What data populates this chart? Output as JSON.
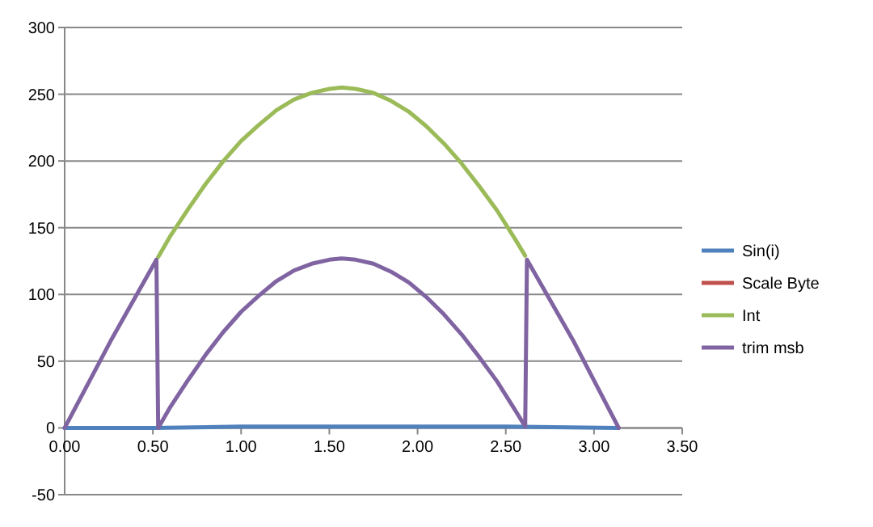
{
  "chart_data": {
    "type": "line",
    "xlim": [
      0,
      3.5
    ],
    "xticks": [
      {
        "value": 0,
        "label": "0.00"
      },
      {
        "value": 0.5,
        "label": "0.50"
      },
      {
        "value": 1,
        "label": "1.00"
      },
      {
        "value": 1.5,
        "label": "1.50"
      },
      {
        "value": 2,
        "label": "2.00"
      },
      {
        "value": 2.5,
        "label": "2.50"
      },
      {
        "value": 3,
        "label": "3.00"
      },
      {
        "value": 3.5,
        "label": "3.50"
      }
    ],
    "ylim": [
      -50,
      300
    ],
    "yticks": [
      -50,
      0,
      50,
      100,
      150,
      200,
      250,
      300
    ],
    "grid": "y",
    "legend": "right",
    "marker": "none",
    "line_style": "solid",
    "series": [
      {
        "name": "Sin(i)",
        "color": "#4f81bd",
        "x": [
          0,
          0.5,
          1,
          1.57,
          2,
          2.5,
          3.14
        ],
        "values": [
          0,
          0,
          1,
          1,
          1,
          1,
          0
        ]
      },
      {
        "name": "Scale Byte",
        "color": "#c0504d"
      },
      {
        "name": "Int",
        "color": "#9bbb59",
        "x": [
          0.53,
          0.6,
          0.7,
          0.8,
          0.9,
          1.0,
          1.1,
          1.2,
          1.3,
          1.4,
          1.5,
          1.57,
          1.65,
          1.75,
          1.85,
          1.95,
          2.05,
          2.15,
          2.25,
          2.35,
          2.45,
          2.55,
          2.61
        ],
        "values": [
          128,
          144,
          164,
          183,
          200,
          215,
          227,
          238,
          246,
          251,
          254,
          255,
          254,
          251,
          245,
          237,
          226,
          213,
          198,
          181,
          163,
          142,
          129
        ]
      },
      {
        "name": "trim msb",
        "color": "#8064a2",
        "x": [
          0,
          0.26,
          0.52,
          0.53,
          0.6,
          0.7,
          0.8,
          0.9,
          1.0,
          1.1,
          1.2,
          1.3,
          1.4,
          1.5,
          1.57,
          1.65,
          1.75,
          1.85,
          1.95,
          2.05,
          2.15,
          2.25,
          2.35,
          2.45,
          2.55,
          2.61,
          2.62,
          2.88,
          3.14
        ],
        "values": [
          0,
          65,
          126,
          0,
          16,
          36,
          55,
          72,
          87,
          99,
          110,
          118,
          123,
          126,
          127,
          126,
          123,
          117,
          109,
          98,
          85,
          70,
          53,
          35,
          14,
          1,
          126,
          66,
          0
        ]
      }
    ]
  }
}
